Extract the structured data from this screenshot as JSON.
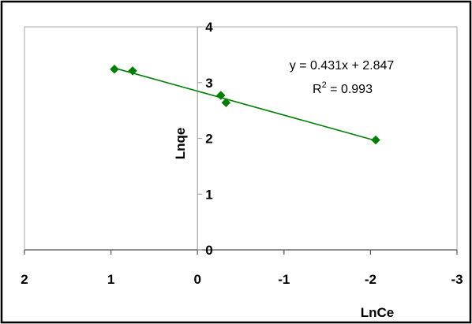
{
  "chart_data": {
    "type": "scatter",
    "xlabel": "LnCe",
    "ylabel": "Lnqe",
    "xlim": [
      2,
      -3
    ],
    "ylim": [
      0,
      4
    ],
    "x_axis_reversed": true,
    "xticks": [
      "2",
      "1",
      "0",
      "-1",
      "-2",
      "-3"
    ],
    "yticks": [
      "0",
      "1",
      "2",
      "3",
      "4"
    ],
    "grid": false,
    "series": [
      {
        "color": "#008000",
        "marker": "diamond",
        "points": [
          {
            "x": 0.96,
            "y": 3.24
          },
          {
            "x": 0.75,
            "y": 3.21
          },
          {
            "x": -0.27,
            "y": 2.77
          },
          {
            "x": -0.33,
            "y": 2.64
          },
          {
            "x": -2.06,
            "y": 1.97
          }
        ]
      }
    ],
    "trendline": {
      "type": "linear",
      "color": "#008000",
      "slope": 0.431,
      "intercept": 2.847,
      "x_range": [
        0.96,
        -2.06
      ]
    },
    "annotations": {
      "equation_prefix": "y = 0.431x + 2.847",
      "r2_label": "R",
      "r2_exponent": "2",
      "r2_value": " = 0.993"
    }
  }
}
